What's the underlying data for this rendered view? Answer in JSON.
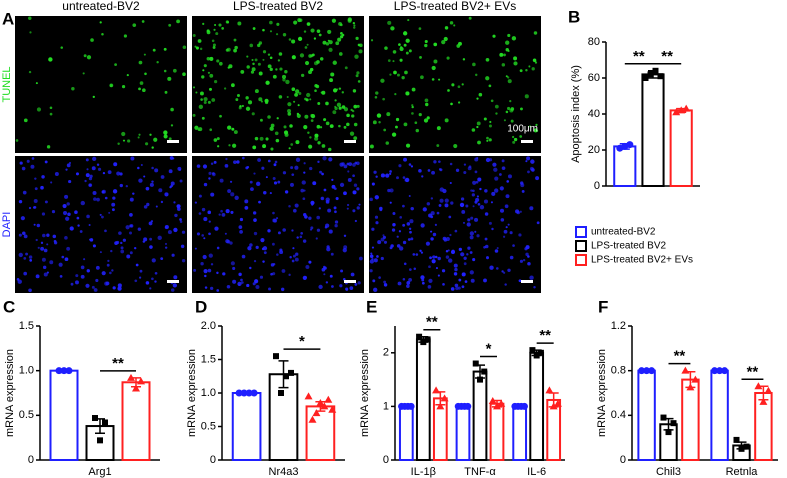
{
  "panel_a": {
    "label": "A",
    "columns": [
      "untreated-BV2",
      "LPS-treated BV2",
      "LPS-treated BV2+ EVs"
    ],
    "rows": [
      "TUNEL",
      "DAPI"
    ],
    "row_colors": [
      "#22dd22",
      "#2222ff"
    ],
    "scale_bar": "100μm"
  },
  "chart_data": [
    {
      "type": "bar",
      "panel_label": "B",
      "ylabel": "Apoptosis index (%)",
      "categories": [
        null
      ],
      "ylim": [
        0,
        80
      ],
      "yticks": [
        0,
        20,
        40,
        60,
        80
      ],
      "legend": "bottom",
      "series": [
        {
          "name": "untreated-BV2",
          "color": "#1f1fff",
          "marker": "circle",
          "values": [
            22
          ],
          "errors": [
            1.5
          ],
          "points": [
            [
              21,
              22,
              23
            ]
          ]
        },
        {
          "name": "LPS-treated BV2",
          "color": "#000000",
          "marker": "square",
          "values": [
            62
          ],
          "errors": [
            2
          ],
          "points": [
            [
              60,
              62,
              64,
              61
            ]
          ]
        },
        {
          "name": "LPS-treated BV2+ EVs",
          "color": "#ff2020",
          "marker": "triangle",
          "values": [
            42
          ],
          "errors": [
            1
          ],
          "points": [
            [
              41,
              42,
              43
            ]
          ]
        }
      ],
      "significance": [
        {
          "text": "**",
          "category": 0,
          "pair": [
            0,
            1
          ]
        },
        {
          "text": "**",
          "category": 0,
          "pair": [
            1,
            2
          ]
        }
      ]
    },
    {
      "type": "bar",
      "panel_label": "C",
      "ylabel": "mRNA expression",
      "categories": [
        "Arg1"
      ],
      "ylim": [
        0,
        1.5
      ],
      "yticks": [
        0,
        0.5,
        {
          "value": 1,
          "label": "1.0"
        },
        1.5
      ],
      "series": [
        {
          "color": "#1f1fff",
          "marker": "circle",
          "values": [
            1
          ],
          "errors": [
            0
          ],
          "points": [
            [
              1,
              1,
              1
            ]
          ]
        },
        {
          "color": "#000000",
          "marker": "square",
          "values": [
            0.38
          ],
          "errors": [
            0.08
          ],
          "points": [
            [
              0.47,
              0.22,
              0.42
            ]
          ]
        },
        {
          "color": "#ff2020",
          "marker": "triangle",
          "values": [
            0.87
          ],
          "errors": [
            0.05
          ],
          "points": [
            [
              0.92,
              0.8,
              0.88
            ]
          ]
        }
      ],
      "significance": [
        {
          "text": "**",
          "category": 0,
          "pair": [
            1,
            2
          ]
        }
      ]
    },
    {
      "type": "bar",
      "panel_label": "D",
      "ylabel": "mRNA expression",
      "categories": [
        "Nr4a3"
      ],
      "ylim": [
        0,
        2
      ],
      "yticks": [
        0,
        0.5,
        {
          "value": 1,
          "label": "1.0"
        },
        1.5,
        {
          "value": 2,
          "label": "2.0"
        }
      ],
      "series": [
        {
          "color": "#1f1fff",
          "marker": "circle",
          "values": [
            1
          ],
          "errors": [
            0
          ],
          "points": [
            [
              1,
              1,
              1,
              1
            ]
          ]
        },
        {
          "color": "#000000",
          "marker": "square",
          "values": [
            1.28
          ],
          "errors": [
            0.2
          ],
          "points": [
            [
              1.55,
              1,
              1.25,
              1.3
            ]
          ]
        },
        {
          "color": "#ff2020",
          "marker": "triangle",
          "values": [
            0.8
          ],
          "errors": [
            0.07
          ],
          "points": [
            [
              0.95,
              0.6,
              0.7,
              0.85,
              0.8,
              0.9,
              0.75
            ]
          ]
        }
      ],
      "significance": [
        {
          "text": "*",
          "category": 0,
          "pair": [
            1,
            2
          ]
        }
      ]
    },
    {
      "type": "bar",
      "panel_label": "E",
      "ylabel": "mRNA expression",
      "categories": [
        "IL-1β",
        "TNF-α",
        "IL-6"
      ],
      "ylim": [
        0,
        2.5
      ],
      "yticks": [
        0,
        1,
        2
      ],
      "series": [
        {
          "color": "#1f1fff",
          "marker": "circle",
          "values": [
            1,
            1,
            1
          ],
          "errors": [
            0,
            0,
            0
          ],
          "points": [
            [
              1,
              1,
              1,
              1
            ],
            [
              1,
              1,
              1,
              1
            ],
            [
              1,
              1,
              1,
              1
            ]
          ]
        },
        {
          "color": "#000000",
          "marker": "square",
          "values": [
            2.25,
            1.65,
            2
          ],
          "errors": [
            0.05,
            0.12,
            0.05
          ],
          "points": [
            [
              2.3,
              2.2,
              2.25
            ],
            [
              1.8,
              1.5,
              1.65
            ],
            [
              2.05,
              1.95,
              2
            ]
          ]
        },
        {
          "color": "#ff2020",
          "marker": "triangle",
          "values": [
            1.15,
            1.05,
            1.12
          ],
          "errors": [
            0.12,
            0.06,
            0.13
          ],
          "points": [
            [
              1.3,
              1,
              1.15
            ],
            [
              1.1,
              1,
              1.05
            ],
            [
              1.3,
              1,
              1.05
            ]
          ]
        }
      ],
      "significance": [
        {
          "text": "**",
          "category": 0,
          "pair": [
            1,
            2
          ]
        },
        {
          "text": "*",
          "category": 1,
          "pair": [
            1,
            2
          ]
        },
        {
          "text": "**",
          "category": 2,
          "pair": [
            1,
            2
          ]
        }
      ]
    },
    {
      "type": "bar",
      "panel_label": "F",
      "ylabel": "mRNA expression",
      "categories": [
        "Chil3",
        "Retnla"
      ],
      "ylim": [
        0,
        1.2
      ],
      "yticks": [
        0,
        0.4,
        0.8,
        1.2
      ],
      "series": [
        {
          "color": "#1f1fff",
          "marker": "circle",
          "values": [
            0.8,
            0.8
          ],
          "errors": [
            0,
            0
          ],
          "points": [
            [
              0.8,
              0.8,
              0.8
            ],
            [
              0.8,
              0.8,
              0.8
            ]
          ]
        },
        {
          "color": "#000000",
          "marker": "square",
          "values": [
            0.32,
            0.13
          ],
          "errors": [
            0.05,
            0.03
          ],
          "points": [
            [
              0.38,
              0.25,
              0.33
            ],
            [
              0.18,
              0.1,
              0.12
            ]
          ]
        },
        {
          "color": "#ff2020",
          "marker": "triangle",
          "values": [
            0.72,
            0.6
          ],
          "errors": [
            0.07,
            0.06
          ],
          "points": [
            [
              0.8,
              0.65,
              0.72
            ],
            [
              0.66,
              0.52,
              0.62
            ]
          ]
        }
      ],
      "significance": [
        {
          "text": "**",
          "category": 0,
          "pair": [
            1,
            2
          ]
        },
        {
          "text": "**",
          "category": 1,
          "pair": [
            1,
            2
          ]
        }
      ]
    }
  ]
}
